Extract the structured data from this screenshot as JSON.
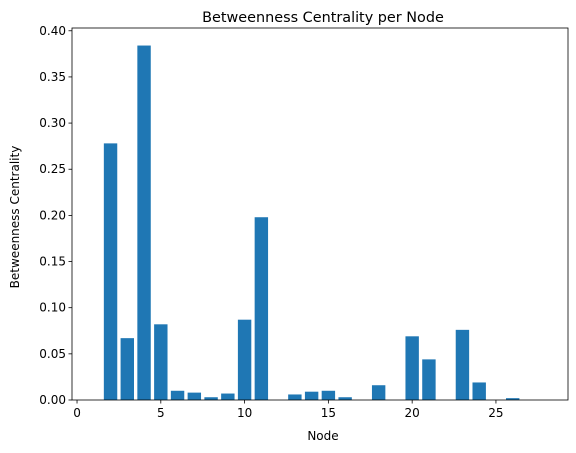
{
  "chart_data": {
    "type": "bar",
    "title": "Betweenness Centrality per Node",
    "xlabel": "Node",
    "ylabel": "Betweenness Centrality",
    "xlim": [
      -0.3,
      29.3
    ],
    "ylim": [
      0,
      0.403
    ],
    "xticks": [
      0,
      5,
      10,
      15,
      20,
      25
    ],
    "yticks": [
      0.0,
      0.05,
      0.1,
      0.15,
      0.2,
      0.25,
      0.3,
      0.35,
      0.4
    ],
    "grid": false,
    "bar_color": "#1f77b4",
    "x": [
      1,
      2,
      3,
      4,
      5,
      6,
      7,
      8,
      9,
      10,
      11,
      12,
      13,
      14,
      15,
      16,
      17,
      18,
      19,
      20,
      21,
      22,
      23,
      24,
      25,
      26,
      27,
      28
    ],
    "values": [
      0.0,
      0.278,
      0.067,
      0.384,
      0.082,
      0.01,
      0.008,
      0.003,
      0.007,
      0.087,
      0.198,
      0.0,
      0.006,
      0.009,
      0.01,
      0.003,
      0.0,
      0.016,
      0.0,
      0.069,
      0.044,
      0.0,
      0.076,
      0.019,
      0.0,
      0.002,
      0.0,
      0.0
    ]
  }
}
